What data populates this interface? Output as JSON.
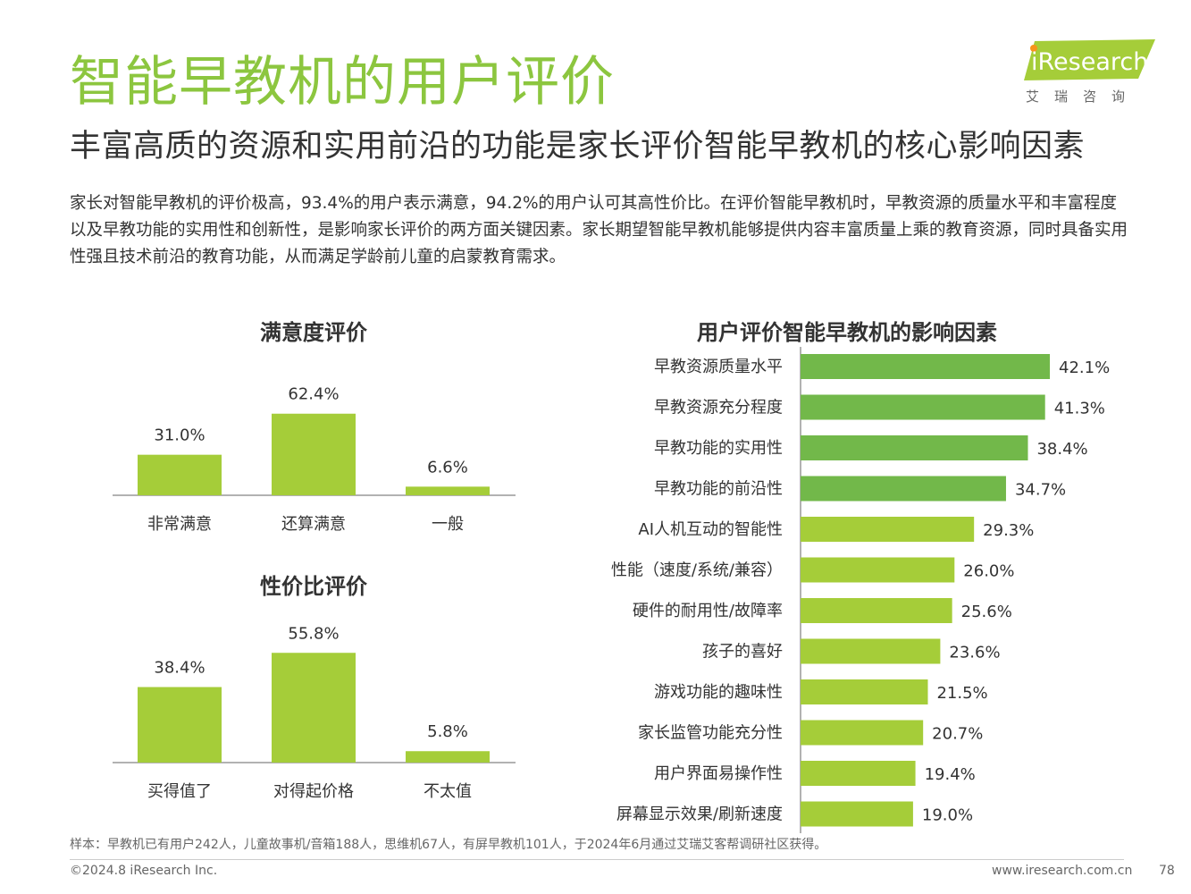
{
  "header": {
    "title": "智能早教机的用户评价",
    "subtitle": "丰富高质的资源和实用前沿的功能是家长评价智能早教机的核心影响因素",
    "intro": "家长对智能早教机的评价极高，93.4%的用户表示满意，94.2%的用户认可其高性价比。在评价智能早教机时，早教资源的质量水平和丰富程度以及早教功能的实用性和创新性，是影响家长评价的两方面关键因素。家长期望智能早教机能够提供内容丰富质量上乘的教育资源，同时具备实用性强且技术前沿的教育功能，从而满足学龄前儿童的启蒙教育需求。"
  },
  "logo": {
    "brand": "iResearch",
    "sub": "艾瑞咨询"
  },
  "footer": {
    "note": "样本：早教机已有用户242人，儿童故事机/音箱188人，思维机67人，有屏早教机101人，于2024年6月通过艾瑞艾客帮调研社区获得。",
    "copyright": "©2024.8 iResearch Inc.",
    "url": "www.iresearch.com.cn",
    "page": "78"
  },
  "colors": {
    "title_green": "#8cc63f",
    "bar_light": "#a5cd39",
    "bar_dark": "#72b84a",
    "axis": "#666666"
  },
  "chart_data": [
    {
      "id": "satisfaction",
      "type": "bar",
      "title": "满意度评价",
      "categories": [
        "非常满意",
        "还算满意",
        "一般"
      ],
      "values": [
        31.0,
        62.4,
        6.6
      ],
      "labels": [
        "31.0%",
        "62.4%",
        "6.6%"
      ],
      "unit": "%",
      "ylim": [
        0,
        80
      ]
    },
    {
      "id": "value",
      "type": "bar",
      "title": "性价比评价",
      "categories": [
        "买得值了",
        "对得起价格",
        "不太值"
      ],
      "values": [
        38.4,
        55.8,
        5.8
      ],
      "labels": [
        "38.4%",
        "55.8%",
        "5.8%"
      ],
      "unit": "%",
      "ylim": [
        0,
        80
      ]
    },
    {
      "id": "factors",
      "type": "bar",
      "orientation": "horizontal",
      "title": "用户评价智能早教机的影响因素",
      "categories": [
        "早教资源质量水平",
        "早教资源充分程度",
        "早教功能的实用性",
        "早教功能的前沿性",
        "AI人机互动的智能性",
        "性能（速度/系统/兼容）",
        "硬件的耐用性/故障率",
        "孩子的喜好",
        "游戏功能的趣味性",
        "家长监管功能充分性",
        "用户界面易操作性",
        "屏幕显示效果/刷新速度"
      ],
      "values": [
        42.1,
        41.3,
        38.4,
        34.7,
        29.3,
        26.0,
        25.6,
        23.6,
        21.5,
        20.7,
        19.4,
        19.0
      ],
      "labels": [
        "42.1%",
        "41.3%",
        "38.4%",
        "34.7%",
        "29.3%",
        "26.0%",
        "25.6%",
        "23.6%",
        "21.5%",
        "20.7%",
        "19.4%",
        "19.0%"
      ],
      "highlight_count": 4,
      "unit": "%",
      "xlim": [
        0,
        42.1
      ]
    }
  ]
}
